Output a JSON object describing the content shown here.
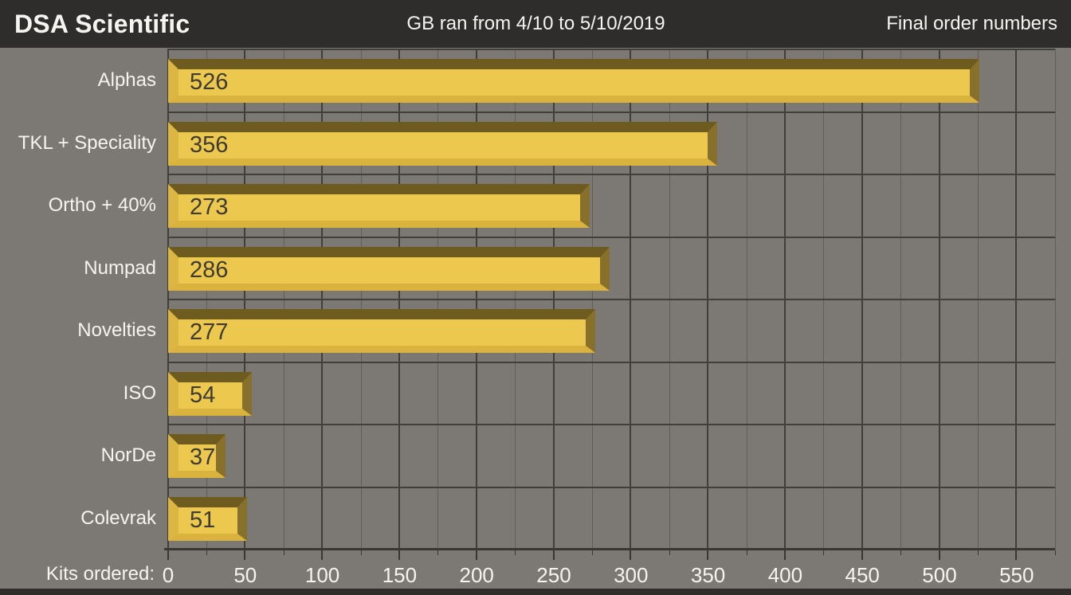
{
  "header": {
    "title": "DSA Scientific",
    "subtitle": "GB ran from 4/10 to 5/10/2019",
    "right_note": "Final order numbers"
  },
  "chart_data": {
    "type": "bar",
    "orientation": "horizontal",
    "categories": [
      "Alphas",
      "TKL + Speciality",
      "Ortho + 40%",
      "Numpad",
      "Novelties",
      "ISO",
      "NorDe",
      "Colevrak"
    ],
    "values": [
      526,
      356,
      273,
      286,
      277,
      54,
      37,
      51
    ],
    "xlabel": "Kits ordered:",
    "xticks": [
      0,
      50,
      100,
      150,
      200,
      250,
      300,
      350,
      400,
      450,
      500,
      550
    ],
    "xlim": [
      0,
      575
    ],
    "minor_tick_step": 25,
    "grid": true,
    "legend": false
  },
  "colors": {
    "header_bg": "#2e2d2b",
    "chart_bg": "#7c7974",
    "text_light": "#f5f4f1",
    "grid_major": "#413f3a",
    "grid_minor": "#605e59",
    "axis": "#383732",
    "bar_body": "#ecc84f",
    "bar_bevel_top": "#6e5b1f",
    "bar_bevel_bottom": "#dab33e",
    "bar_bevel_left": "#dcb643",
    "bar_bevel_right": "#86702b",
    "value_text": "#3d3b33"
  }
}
